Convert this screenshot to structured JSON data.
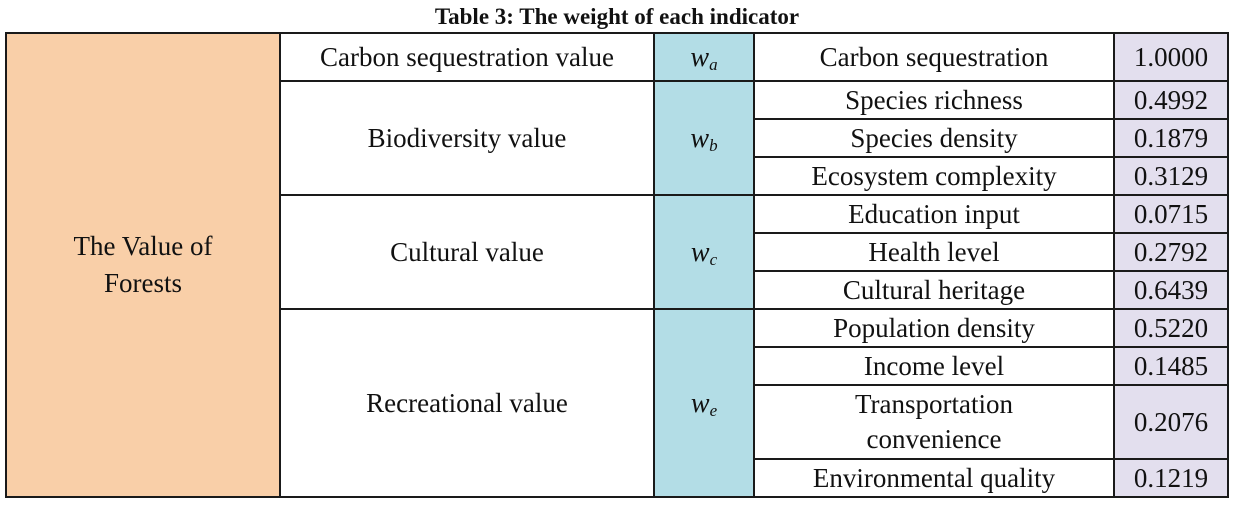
{
  "caption": "Table 3: The weight of each indicator",
  "root": "The Value of Forests",
  "groups": [
    {
      "name": "Carbon sequestration value",
      "symbol": {
        "base": "w",
        "sub": "a"
      },
      "indicators": [
        {
          "name": "Carbon sequestration",
          "weight": "1.0000"
        }
      ]
    },
    {
      "name": "Biodiversity value",
      "symbol": {
        "base": "w",
        "sub": "b"
      },
      "indicators": [
        {
          "name": "Species richness",
          "weight": "0.4992"
        },
        {
          "name": "Species density",
          "weight": "0.1879"
        },
        {
          "name": "Ecosystem complexity",
          "weight": "0.3129"
        }
      ]
    },
    {
      "name": "Cultural value",
      "symbol": {
        "base": "w",
        "sub": "c"
      },
      "indicators": [
        {
          "name": "Education input",
          "weight": "0.0715"
        },
        {
          "name": "Health level",
          "weight": "0.2792"
        },
        {
          "name": "Cultural heritage",
          "weight": "0.6439"
        }
      ]
    },
    {
      "name": "Recreational value",
      "symbol": {
        "base": "w",
        "sub": "e"
      },
      "indicators": [
        {
          "name": "Population density",
          "weight": "0.5220"
        },
        {
          "name": "Income level",
          "weight": "0.1485"
        },
        {
          "name": "Transportation convenience",
          "weight": "0.2076"
        },
        {
          "name": "Environmental quality",
          "weight": "0.1219"
        }
      ]
    }
  ],
  "colors": {
    "root_fill": "#f9cfa8",
    "symbol_fill": "#b3dde6",
    "weight_fill": "#e3dfee",
    "border": "#1a1a1a"
  }
}
